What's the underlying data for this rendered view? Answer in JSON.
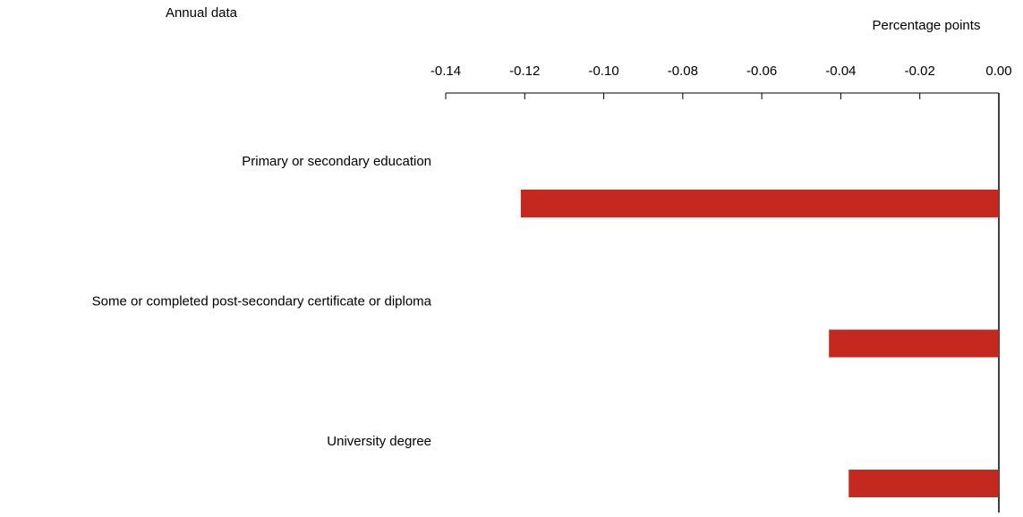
{
  "chart_data": {
    "type": "bar",
    "orientation": "horizontal",
    "subtitle": "Annual data",
    "x_label": "Percentage points",
    "categories": [
      "Primary or secondary education",
      "Some or completed post-secondary certificate or diploma",
      "University degree"
    ],
    "values": [
      -0.121,
      -0.043,
      -0.038
    ],
    "color": "#c4281e",
    "xlim": [
      -0.14,
      0
    ],
    "xticks": [
      -0.14,
      -0.12,
      {
        "value": -0.1,
        "label": "-0.10"
      },
      -0.08,
      -0.06,
      -0.04,
      -0.02,
      {
        "value": 0,
        "label": "0.00"
      }
    ]
  }
}
